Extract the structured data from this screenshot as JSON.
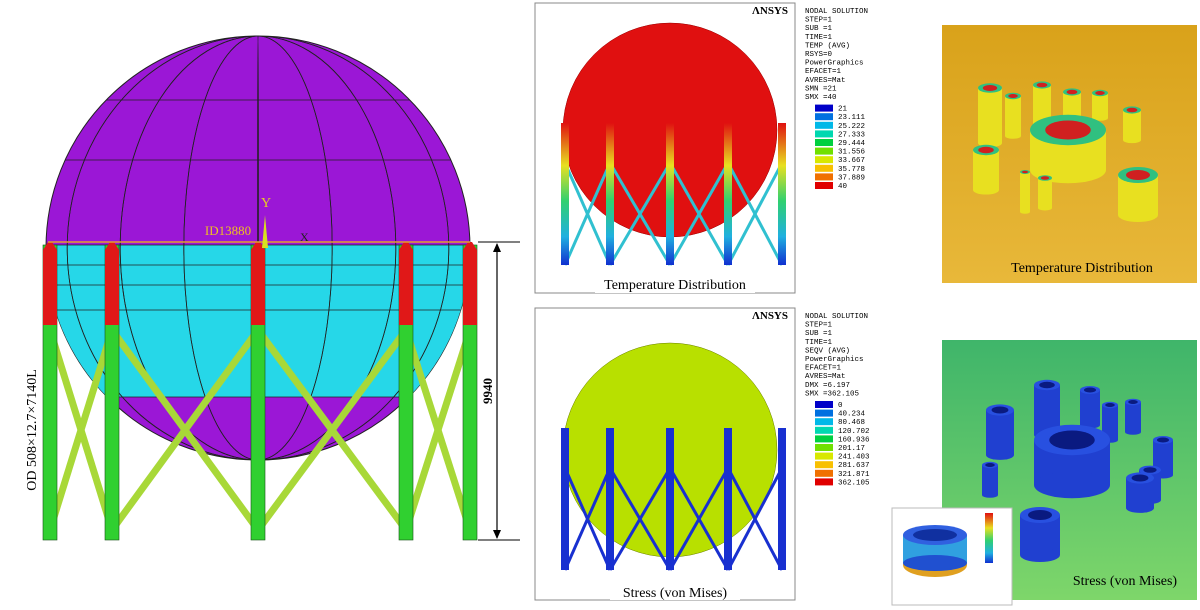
{
  "tank": {
    "diameter": "ID13880",
    "height": "9940",
    "column": "OD 508×12.7×7140L",
    "axis_y": "Y",
    "axis_x": "X"
  },
  "temperature_panel": {
    "logo": "ΛNSYS",
    "solution": [
      "NODAL SOLUTION",
      "STEP=1",
      "SUB =1",
      "TIME=1",
      "TEMP     (AVG)",
      "RSYS=0",
      "PowerGraphics",
      "EFACET=1",
      "AVRES=Mat",
      "SMN =21",
      "SMX =40"
    ],
    "legend": [
      "21",
      "23.111",
      "25.222",
      "27.333",
      "29.444",
      "31.556",
      "33.667",
      "35.778",
      "37.889",
      "40"
    ],
    "caption": "Temperature Distribution"
  },
  "stress_panel": {
    "logo": "ΛNSYS",
    "solution": [
      "NODAL SOLUTION",
      "STEP=1",
      "SUB =1",
      "TIME=1",
      "SEQV     (AVG)",
      "PowerGraphics",
      "EFACET=1",
      "AVRES=Mat",
      "DMX =6.197",
      "SMX =362.105"
    ],
    "legend": [
      "0",
      "40.234",
      "80.468",
      "120.702",
      "160.936",
      "201.17",
      "241.403",
      "281.637",
      "321.871",
      "362.105"
    ],
    "caption": "Stress (von Mises)"
  },
  "nozzle_temperature": {
    "caption": "Temperature Distribution"
  },
  "nozzle_stress": {
    "caption": "Stress (von Mises)"
  }
}
